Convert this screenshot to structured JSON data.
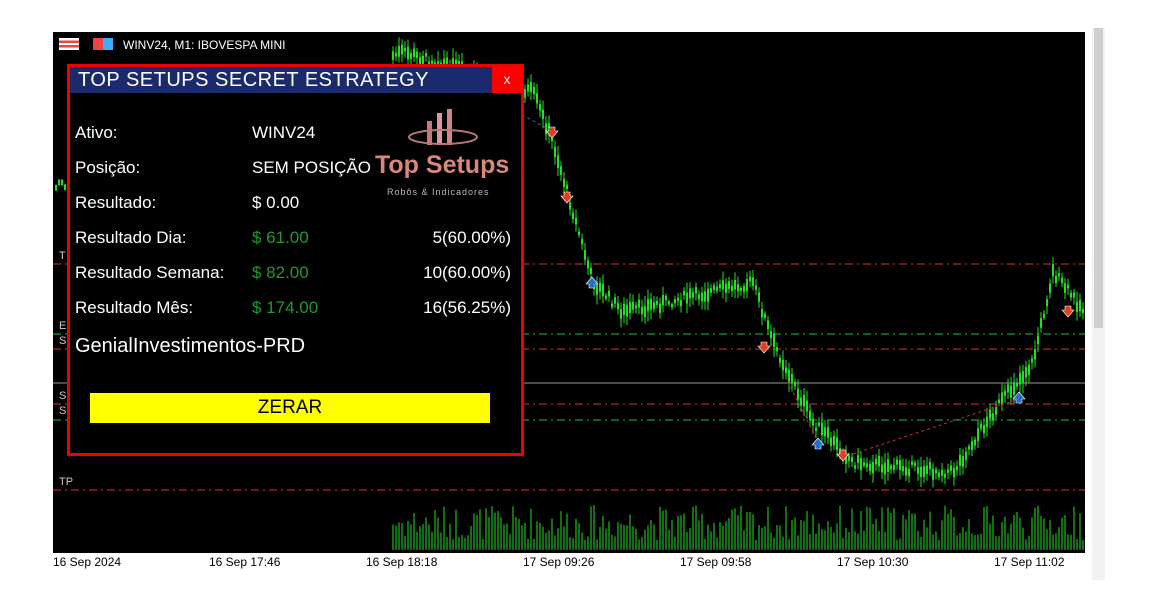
{
  "window": {
    "title": "WINV24, M1:  IBOVESPA MINI"
  },
  "colors": {
    "bull": "#22e022",
    "sell_arrow": "#e04020",
    "buy_arrow": "#1e6fd0",
    "panel_border": "#ee0000",
    "title_bg": "#1a2a6c",
    "button": "#ffff00",
    "profit": "#1f9a2f"
  },
  "levels": [
    {
      "label": "T",
      "color": "red"
    },
    {
      "label": "E",
      "color": "green"
    },
    {
      "label": "S",
      "color": "red"
    },
    {
      "label": "S",
      "color": "red"
    },
    {
      "label": "S",
      "color": "green"
    },
    {
      "label": "TP",
      "color": "red"
    }
  ],
  "time_axis": [
    "16 Sep 2024",
    "16 Sep 17:46",
    "16 Sep 18:18",
    "17 Sep 09:26",
    "17 Sep 09:58",
    "17 Sep 10:30",
    "17 Sep 11:02"
  ],
  "panel": {
    "title": "TOP SETUPS SECRET ESTRATEGY",
    "close": "x",
    "logo": {
      "name": "Top Setups",
      "tagline": "Robôs & Indicadores"
    },
    "rows": [
      {
        "label": "Ativo:",
        "value": "WINV24"
      },
      {
        "label": "Posição:",
        "value": "SEM POSIÇÃO"
      },
      {
        "label": "Resultado:",
        "value": "$ 0.00"
      },
      {
        "label": "Resultado Dia:",
        "value": "$ 61.00",
        "count": "5(60.00%)"
      },
      {
        "label": "Resultado Semana:",
        "value": "$ 82.00",
        "count": "10(60.00%)"
      },
      {
        "label": "Resultado Mês:",
        "value": "$ 174.00",
        "count": "16(56.25%)"
      }
    ],
    "broker": "GenialInvestimentos-PRD",
    "button": "ZERAR"
  }
}
